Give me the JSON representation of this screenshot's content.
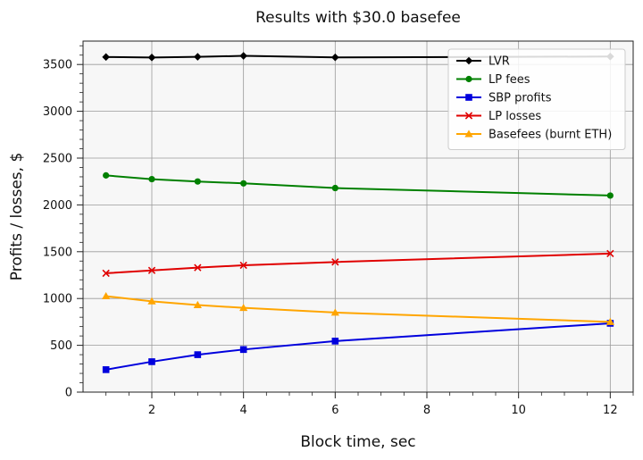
{
  "chart_data": {
    "type": "line",
    "title": "Results with $30.0 basefee",
    "xlabel": "Block time, sec",
    "ylabel": "Profits / losses, $",
    "xlim": [
      0.5,
      12.5
    ],
    "ylim": [
      0,
      3750
    ],
    "xticks": [
      2,
      4,
      6,
      8,
      10,
      12
    ],
    "yticks": [
      0,
      500,
      1000,
      1500,
      2000,
      2500,
      3000,
      3500
    ],
    "grid": true,
    "legend_position": "top-right",
    "x": [
      1,
      2,
      3,
      4,
      6,
      12
    ],
    "series": [
      {
        "name": "LVR",
        "color": "#000000",
        "marker": "diamond",
        "values": [
          3580,
          3575,
          3582,
          3592,
          3576,
          3585
        ]
      },
      {
        "name": "LP fees",
        "color": "#008000",
        "marker": "circle",
        "values": [
          2315,
          2275,
          2250,
          2230,
          2180,
          2100
        ]
      },
      {
        "name": "SBP profits",
        "color": "#0000dd",
        "marker": "square",
        "values": [
          240,
          325,
          400,
          455,
          545,
          735
        ]
      },
      {
        "name": "LP losses",
        "color": "#e00000",
        "marker": "x",
        "values": [
          1270,
          1300,
          1330,
          1355,
          1390,
          1480
        ]
      },
      {
        "name": "Basefees (burnt ETH)",
        "color": "#ffa500",
        "marker": "triangle",
        "values": [
          1025,
          970,
          930,
          900,
          850,
          750
        ]
      }
    ]
  }
}
